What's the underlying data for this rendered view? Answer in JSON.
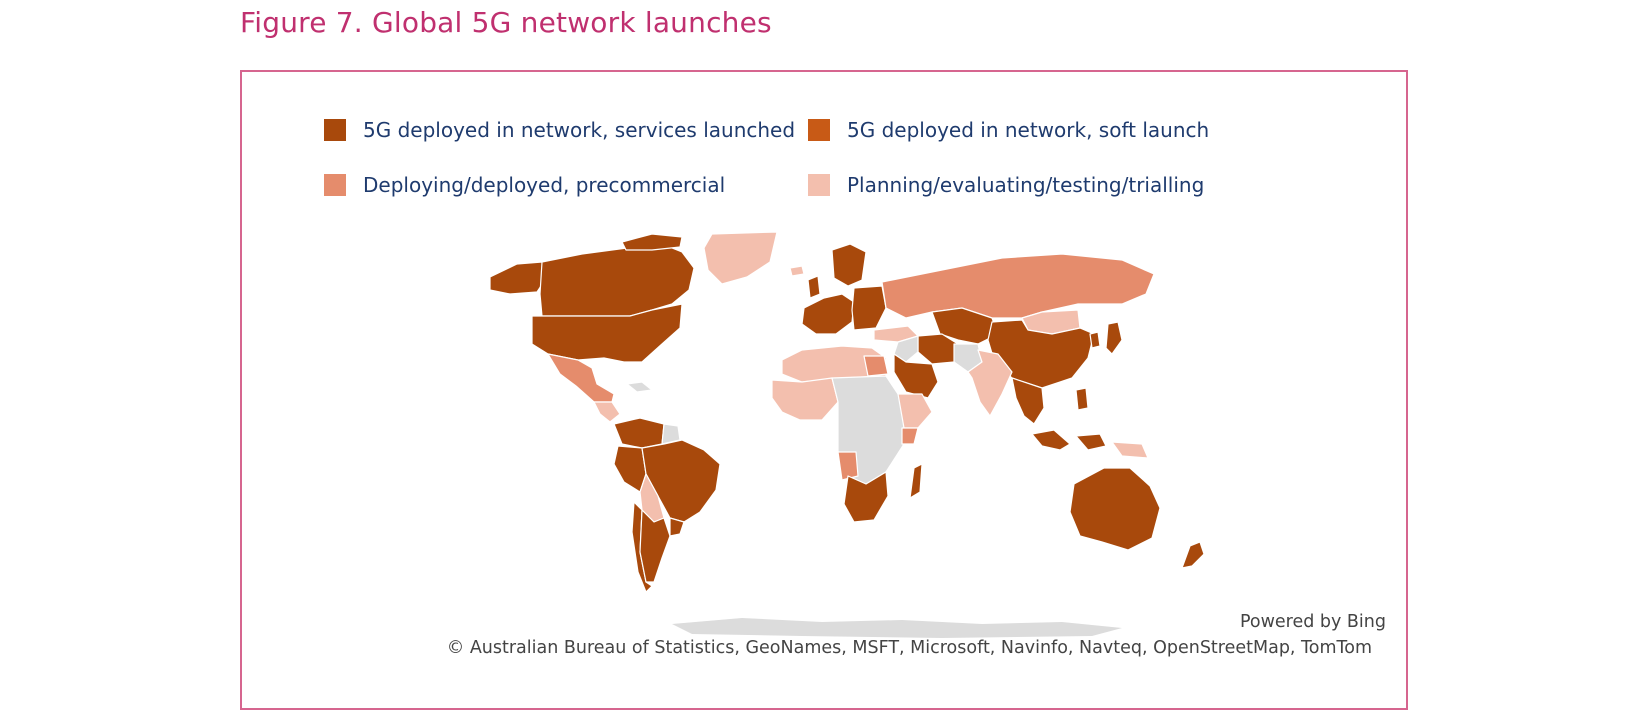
{
  "figure": {
    "title": "Figure 7. Global 5G network launches"
  },
  "legend": [
    {
      "label": "5G deployed in network, services launched",
      "color": "#a8490c"
    },
    {
      "label": "5G deployed in network, soft launch",
      "color": "#c85a16"
    },
    {
      "label": "Deploying/deployed, precommercial",
      "color": "#e58c6c"
    },
    {
      "label": "Planning/evaluating/testing/trialling",
      "color": "#f3bfae"
    }
  ],
  "map": {
    "no_data_color": "#dcdcdc",
    "powered_by": "Powered by Bing",
    "copyright": "© Australian Bureau of Statistics, GeoNames, MSFT, Microsoft, Navinfo, Navteq, OpenStreetMap, TomTom"
  }
}
